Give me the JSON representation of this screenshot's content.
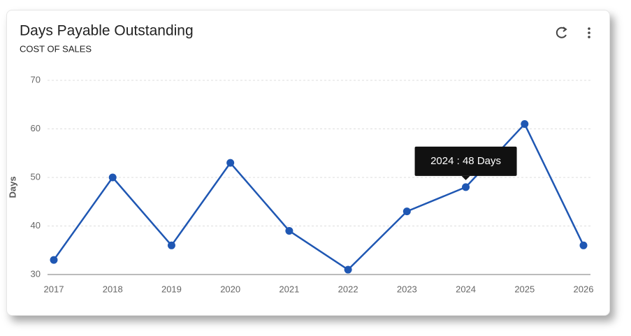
{
  "chart_data": {
    "type": "line",
    "title": "Days Payable Outstanding",
    "subtitle": "COST OF SALES",
    "y_label": "Days",
    "categories": [
      "2017",
      "2018",
      "2019",
      "2020",
      "2021",
      "2022",
      "2023",
      "2024",
      "2025",
      "2026"
    ],
    "values": [
      33,
      50,
      36,
      53,
      39,
      31,
      43,
      48,
      61,
      36
    ],
    "color": "#1f57b3",
    "ylim": [
      30,
      70
    ],
    "yticks": [
      30,
      40,
      50,
      60,
      70
    ],
    "grid": true,
    "tooltip": {
      "category": "2024",
      "label": "2024 : 48 Days"
    }
  }
}
